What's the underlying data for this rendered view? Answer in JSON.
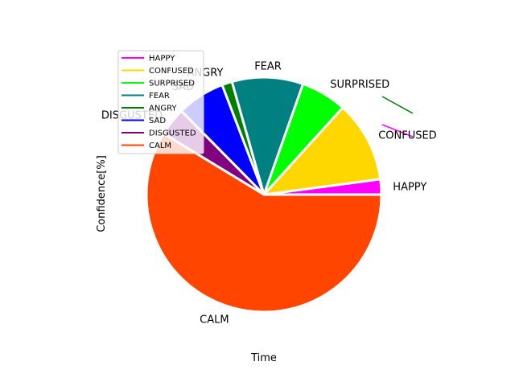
{
  "chart_data": {
    "type": "pie",
    "xlabel": "Time",
    "ylabel": "Confidence[%]",
    "categories": [
      "HAPPY",
      "CONFUSED",
      "SURPRISED",
      "FEAR",
      "ANGRY",
      "SAD",
      "DISGUSTED",
      "CALM"
    ],
    "values": [
      2.1,
      11.2,
      6.3,
      9.8,
      1.4,
      6.6,
      3.9,
      58.7
    ],
    "colors": [
      "#ff00ff",
      "#ffd700",
      "#00ff00",
      "#008080",
      "#008000",
      "#0000ff",
      "#800080",
      "#ff4500"
    ],
    "legend": {
      "placement": "upper-left",
      "entries": [
        "HAPPY",
        "CONFUSED",
        "SURPRISED",
        "FEAR",
        "ANGRY",
        "SAD",
        "DISGUSTED",
        "CALM"
      ]
    },
    "stray_lines": [
      {
        "color": "#008000"
      },
      {
        "color": "#ff00ff"
      }
    ]
  }
}
